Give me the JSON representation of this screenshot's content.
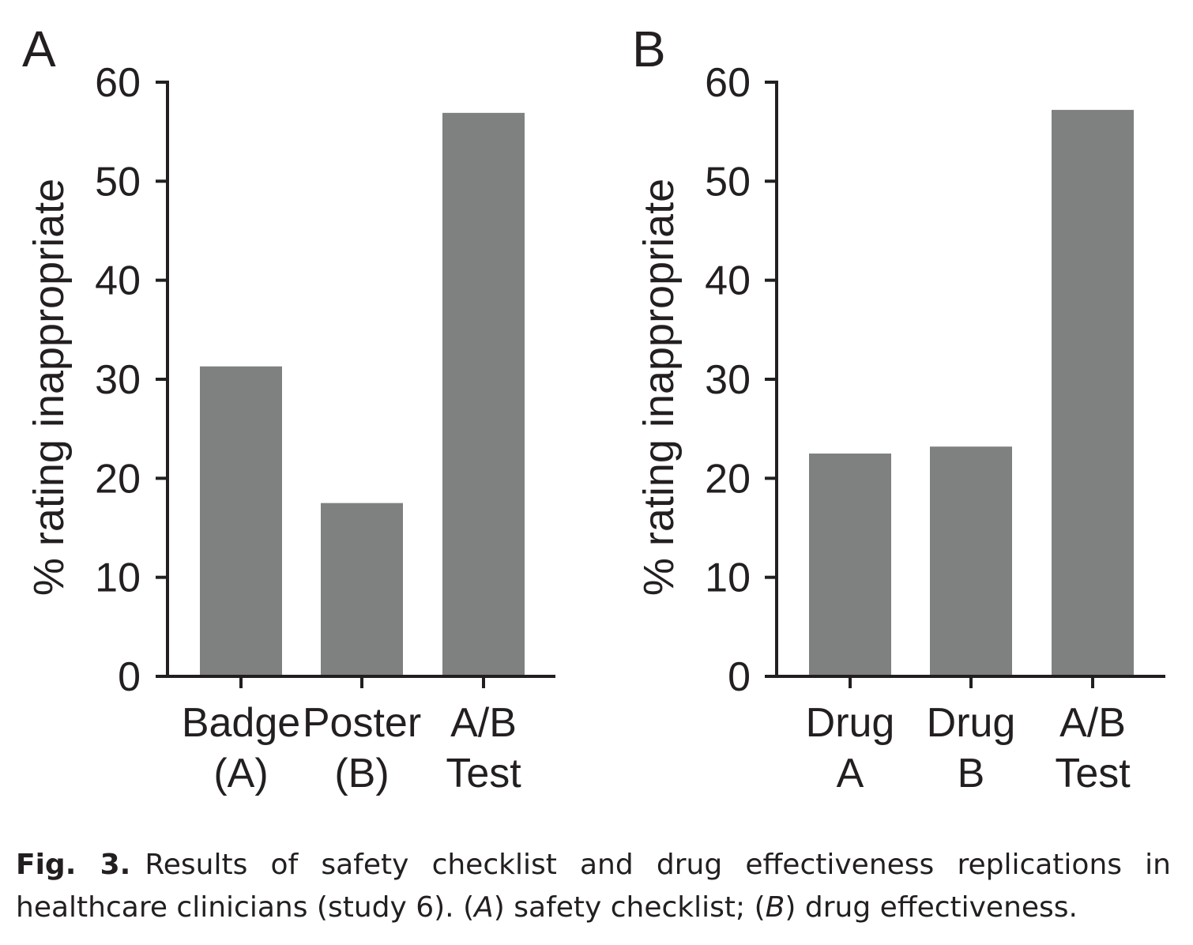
{
  "chart_data": [
    {
      "type": "bar",
      "panel": "A",
      "categories": [
        [
          "Badge",
          "(A)"
        ],
        [
          "Poster",
          "(B)"
        ],
        [
          "A/B",
          "Test"
        ]
      ],
      "values": [
        31.3,
        17.5,
        56.9
      ],
      "ylabel": "% rating inappropriate",
      "ylim": [
        0,
        60
      ],
      "yticks": [
        0,
        10,
        20,
        30,
        40,
        50,
        60
      ],
      "grid": false,
      "bar_color": "#7f8080"
    },
    {
      "type": "bar",
      "panel": "B",
      "categories": [
        [
          "Drug",
          "A"
        ],
        [
          "Drug",
          "B"
        ],
        [
          "A/B",
          "Test"
        ]
      ],
      "values": [
        22.5,
        23.2,
        57.2
      ],
      "ylabel": "% rating inappropriate",
      "ylim": [
        0,
        60
      ],
      "yticks": [
        0,
        10,
        20,
        30,
        40,
        50,
        60
      ],
      "grid": false,
      "bar_color": "#7f8080"
    }
  ],
  "caption": {
    "label": "Fig. 3.",
    "text_1": "Results of safety checklist and drug effectiveness replications in healthcare clinicians (study 6). (",
    "italic_1": "A",
    "text_2": ") safety checklist; (",
    "italic_2": "B",
    "text_3": ") drug effectiveness."
  }
}
